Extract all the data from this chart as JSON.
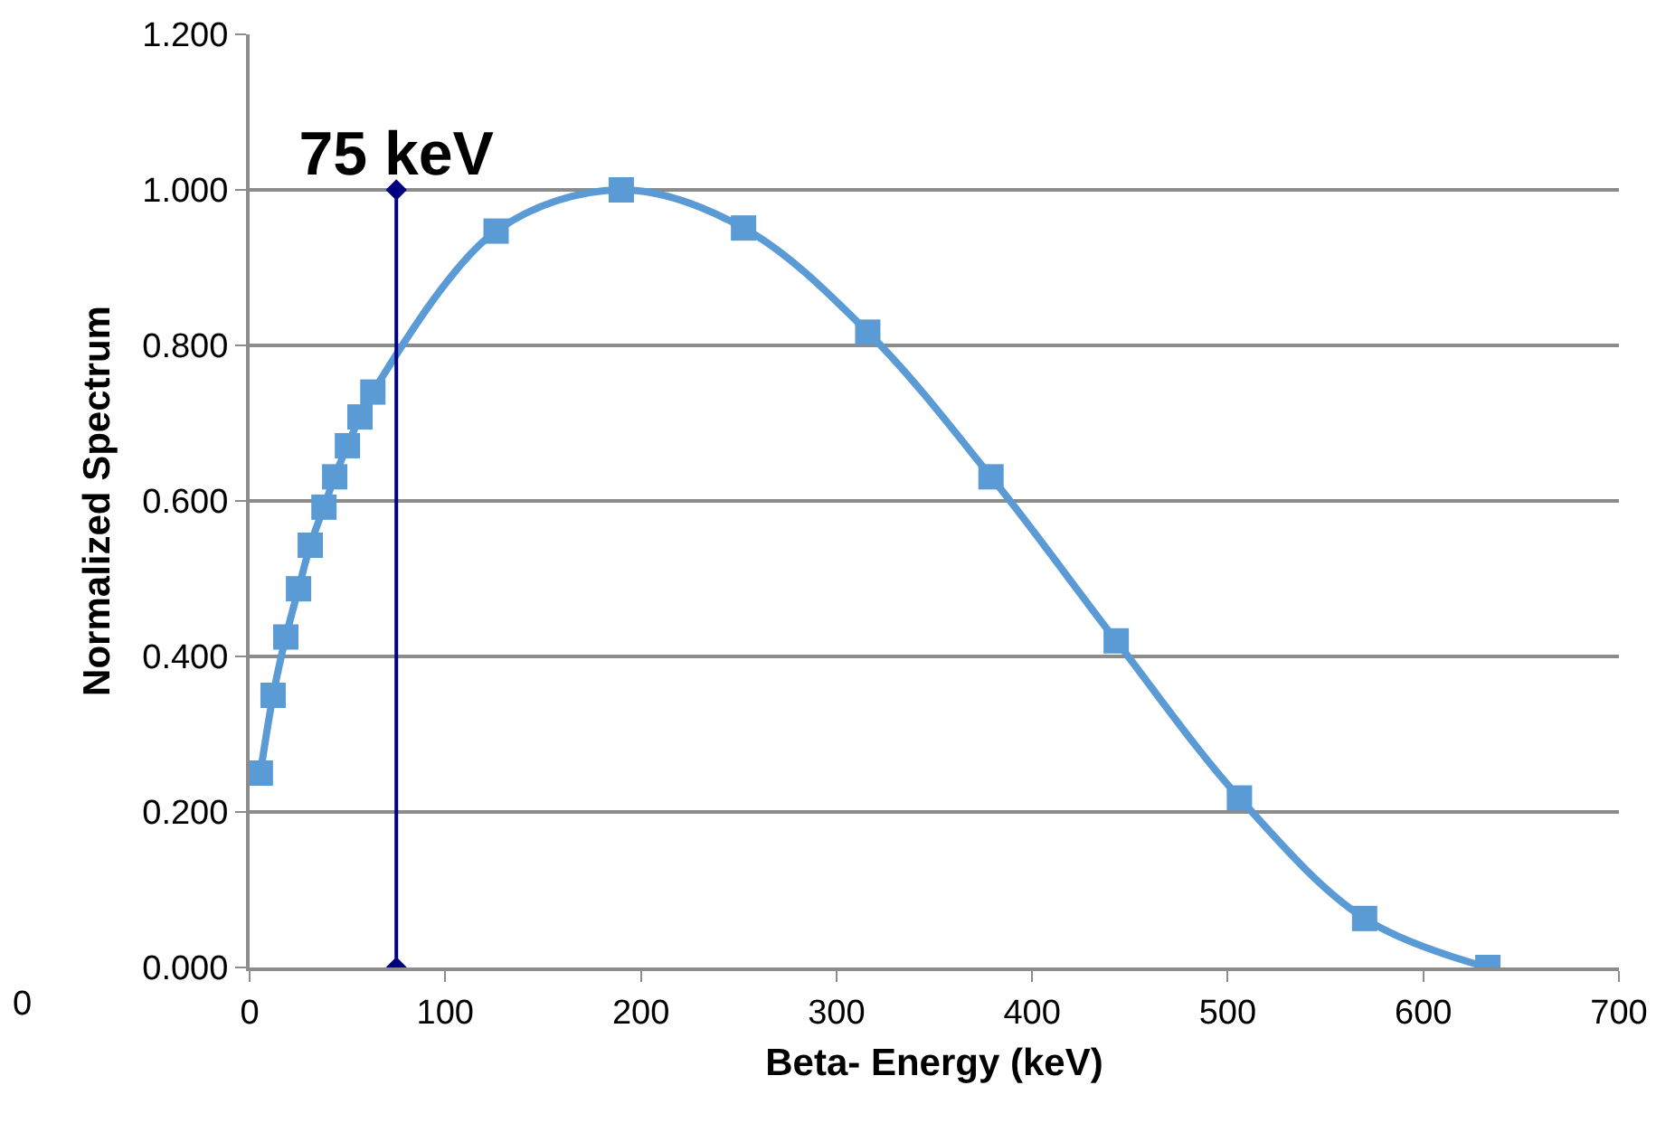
{
  "chart_data": {
    "type": "line",
    "xlabel": "Beta- Energy (keV)",
    "ylabel": "Normalized Spectrum",
    "xlim": [
      0,
      700
    ],
    "xticks": [
      0,
      100,
      200,
      300,
      400,
      500,
      600,
      700
    ],
    "ylim": [
      0,
      1.2
    ],
    "yticks": [
      {
        "value": 0,
        "label": "0.000"
      },
      {
        "value": 0.2,
        "label": "0.200"
      },
      {
        "value": 0.4,
        "label": "0.400"
      },
      {
        "value": 0.6,
        "label": "0.600"
      },
      {
        "value": 0.8,
        "label": "0.800"
      },
      {
        "value": 1,
        "label": "1.000"
      },
      {
        "value": 1.2,
        "label": "1.200"
      }
    ],
    "grid": "y",
    "series": [
      {
        "color": "#5b9bd5",
        "marker": "square",
        "x": [
          5.5,
          12,
          18.5,
          25,
          31,
          38,
          43.5,
          50,
          56.4,
          63,
          126,
          190,
          252.5,
          316,
          379,
          443,
          506,
          570,
          633
        ],
        "values": [
          0.25,
          0.35,
          0.425,
          0.487,
          0.543,
          0.592,
          0.631,
          0.671,
          0.708,
          0.74,
          0.947,
          1.0,
          0.951,
          0.817,
          0.631,
          0.42,
          0.218,
          0.063,
          0.0
        ]
      },
      {
        "color": "#000080",
        "marker": "diamond",
        "x": [
          75,
          75
        ],
        "values": [
          0,
          1
        ]
      }
    ],
    "annotations": [
      {
        "text": "75 keV",
        "x": 75,
        "y": 1
      },
      "0"
    ]
  }
}
